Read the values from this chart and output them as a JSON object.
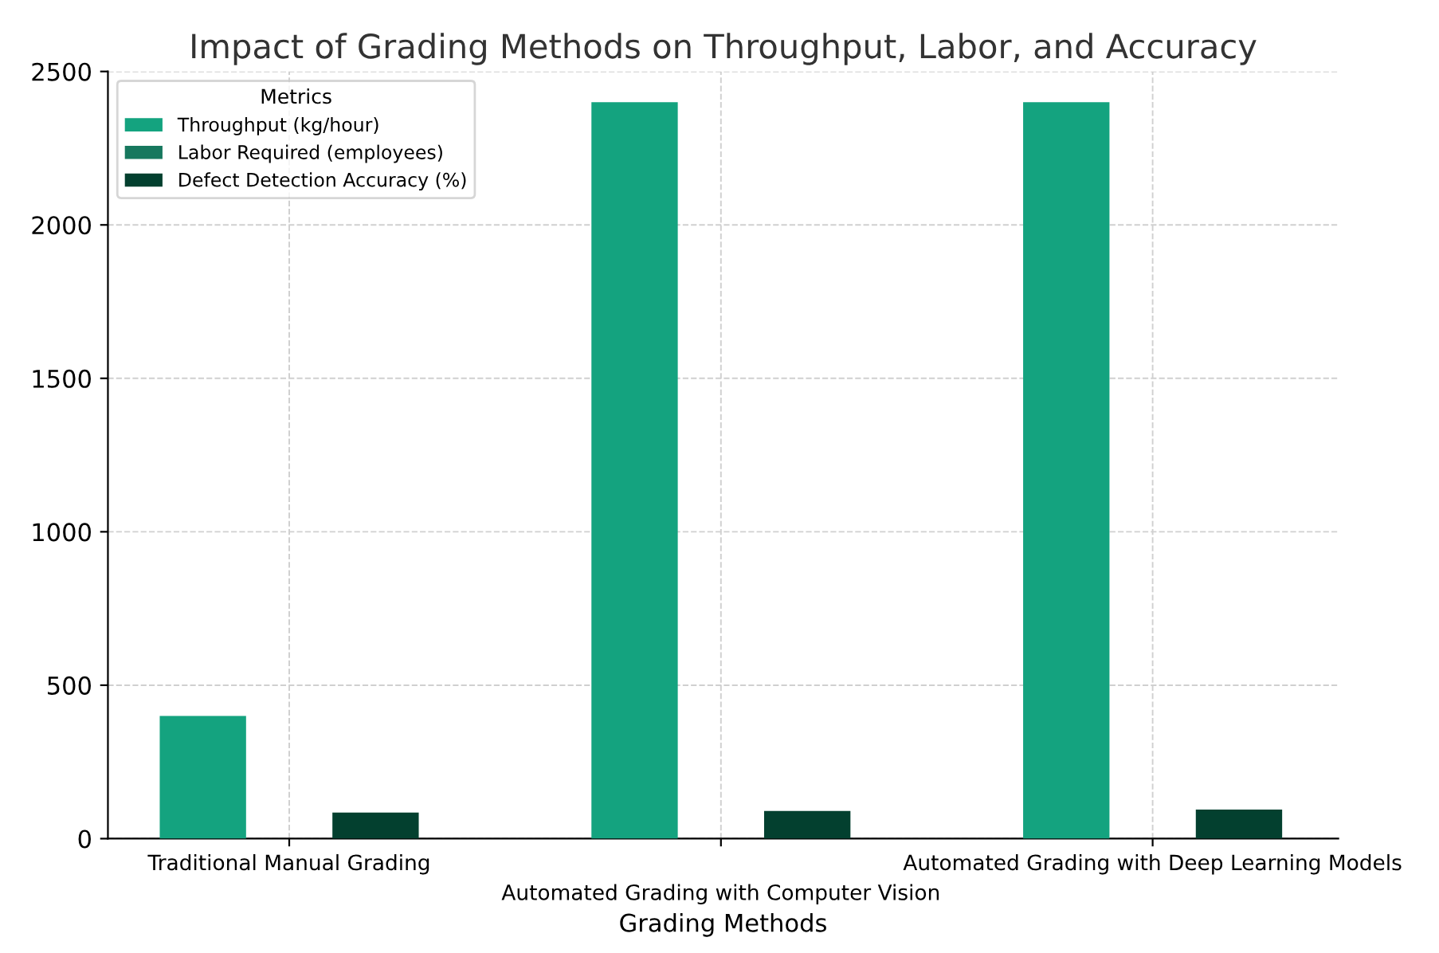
{
  "chart_data": {
    "type": "bar",
    "title": "Impact of Grading Methods on Throughput, Labor, and Accuracy",
    "xlabel": "Grading Methods",
    "legend_title": "Metrics",
    "categories": [
      "Traditional Manual Grading",
      "Automated Grading with Computer Vision",
      "Automated Grading with Deep Learning Models"
    ],
    "series": [
      {
        "name": "Throughput (kg/hour)",
        "color": "#14a37f",
        "values": [
          400,
          2400,
          2400
        ]
      },
      {
        "name": "Labor Required (employees)",
        "color": "#17785e",
        "values": [
          null,
          null,
          null
        ]
      },
      {
        "name": "Defect Detection Accuracy (%)",
        "color": "#03402f",
        "values": [
          85,
          90,
          95
        ]
      }
    ],
    "ylim": [
      0,
      2500
    ],
    "yticks": [
      0,
      500,
      1000,
      1500,
      2000,
      2500
    ],
    "grid": true,
    "legend": "top left"
  }
}
